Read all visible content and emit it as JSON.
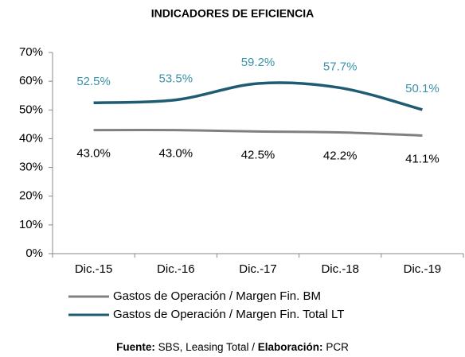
{
  "chart_data": {
    "type": "line",
    "title": "INDICADORES DE EFICIENCIA",
    "categories": [
      "Dic.-15",
      "Dic.-16",
      "Dic.-17",
      "Dic.-18",
      "Dic.-19"
    ],
    "series": [
      {
        "name": "Gastos de Operación / Margen Fin. BM",
        "color": "#808080",
        "label_color": "#000000",
        "values": [
          43.0,
          43.0,
          42.5,
          42.2,
          41.1
        ],
        "value_labels": [
          "43.0%",
          "43.0%",
          "42.5%",
          "42.2%",
          "41.1%"
        ]
      },
      {
        "name": "Gastos de Operación / Margen Fin. Total LT",
        "color": "#1f5b72",
        "label_color": "#3a93a8",
        "values": [
          52.5,
          53.5,
          59.2,
          57.7,
          50.1
        ],
        "value_labels": [
          "52.5%",
          "53.5%",
          "59.2%",
          "57.7%",
          "50.1%"
        ]
      }
    ],
    "ylim": [
      0,
      70
    ],
    "yticks": [
      {
        "value": 0,
        "label": "0%"
      },
      {
        "value": 10,
        "label": "10%"
      },
      {
        "value": 20,
        "label": "20%"
      },
      {
        "value": 30,
        "label": "30%"
      },
      {
        "value": 40,
        "label": "40%"
      },
      {
        "value": 50,
        "label": "50%"
      },
      {
        "value": 60,
        "label": "60%"
      },
      {
        "value": 70,
        "label": "70%"
      }
    ],
    "smooth": true,
    "legend": "bottom",
    "source": [
      "Fuente:",
      "SBS, Leasing Total /",
      "Elaboración:",
      "PCR"
    ]
  }
}
